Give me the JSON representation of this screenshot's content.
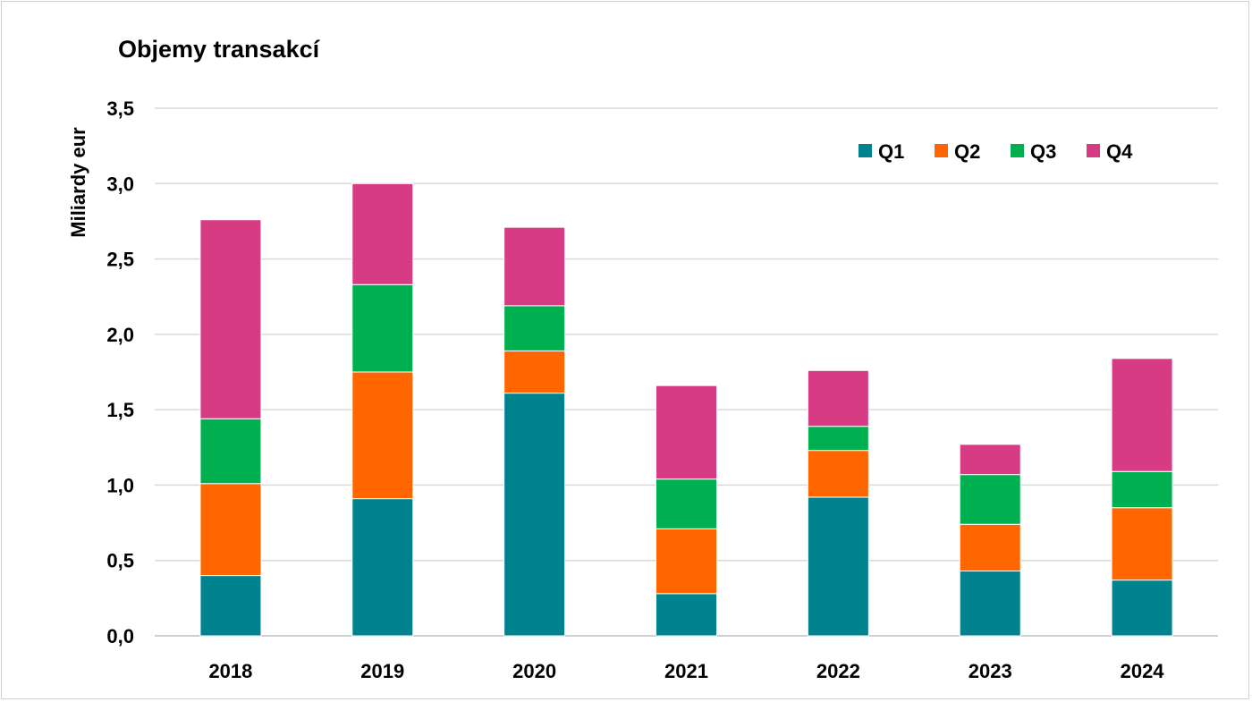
{
  "chart_data": {
    "type": "bar",
    "stacked": true,
    "title": "Objemy transakcí",
    "ylabel": "Miliardy eur",
    "xlabel": "",
    "categories": [
      "2018",
      "2019",
      "2020",
      "2021",
      "2022",
      "2023",
      "2024"
    ],
    "ylim": [
      0,
      3.5
    ],
    "yticks": [
      "0,0",
      "0,5",
      "1,0",
      "1,5",
      "2,0",
      "2,5",
      "3,0",
      "3,5"
    ],
    "grid": true,
    "legend_position": "top-right",
    "series": [
      {
        "name": "Q1",
        "color": "#00838f",
        "values": [
          0.4,
          0.91,
          1.61,
          0.28,
          0.92,
          0.43,
          0.37
        ]
      },
      {
        "name": "Q2",
        "color": "#ff6600",
        "values": [
          0.61,
          0.84,
          0.28,
          0.43,
          0.31,
          0.31,
          0.48
        ]
      },
      {
        "name": "Q3",
        "color": "#00b050",
        "values": [
          0.43,
          0.58,
          0.3,
          0.33,
          0.16,
          0.33,
          0.24
        ]
      },
      {
        "name": "Q4",
        "color": "#d63b84",
        "values": [
          1.32,
          0.67,
          0.52,
          0.62,
          0.37,
          0.2,
          0.75
        ]
      }
    ]
  }
}
